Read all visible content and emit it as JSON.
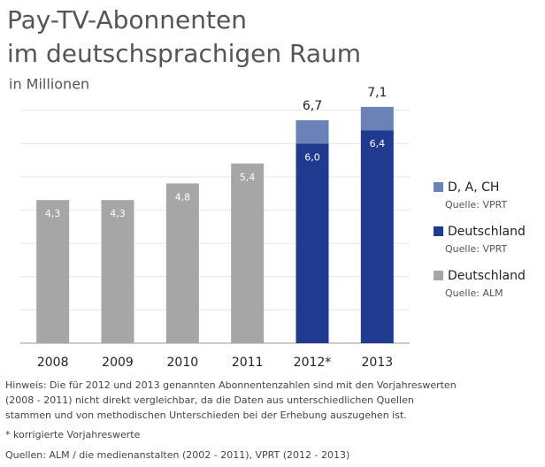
{
  "chart_data": {
    "type": "stacked-bar",
    "title": [
      "Pay-TV-Abonnenten",
      "im deutschsprachigen Raum"
    ],
    "subtitle": "in Millionen",
    "categories": [
      "2008",
      "2009",
      "2010",
      "2011",
      "2012*",
      "2013"
    ],
    "series": [
      {
        "name": "Deutschland",
        "source": "Quelle: ALM",
        "color": "#a6a6a6",
        "values": [
          4.3,
          4.3,
          4.8,
          5.4,
          null,
          null
        ],
        "value_labels": [
          "4,3",
          "4,3",
          "4,8",
          "5,4",
          null,
          null
        ]
      },
      {
        "name": "Deutschland",
        "source": "Quelle: VPRT",
        "color": "#1f3a8f",
        "values": [
          null,
          null,
          null,
          null,
          6.0,
          6.4
        ],
        "value_labels": [
          null,
          null,
          null,
          null,
          "6,0",
          "6,4"
        ]
      },
      {
        "name": "D, A, CH",
        "source": "Quelle: VPRT",
        "color": "#6b82b8",
        "values": [
          null,
          null,
          null,
          null,
          0.7,
          0.7
        ]
      }
    ],
    "totals": [
      null,
      null,
      null,
      null,
      6.7,
      7.1
    ],
    "total_labels": [
      null,
      null,
      null,
      null,
      "6,7",
      "7,1"
    ],
    "ylim": [
      0,
      8
    ],
    "yticks": [
      0,
      1,
      2,
      3,
      4,
      5,
      6,
      7
    ],
    "grid": true,
    "notes": [
      "Hinweis: Die für 2012 und 2013 genannten Abonnentenzahlen sind mit den Vorjahreswerten",
      "(2008 - 2011) nicht direkt vergleichbar, da die Daten aus unterschiedlichen Quellen",
      "stammen und von methodischen Unterschieden bei der Erhebung auszugehen ist."
    ],
    "footnote": "* korrigierte Vorjahreswerte",
    "sources": "Quellen: ALM / die medienanstalten (2002 - 2011), VPRT (2012 - 2013)"
  }
}
